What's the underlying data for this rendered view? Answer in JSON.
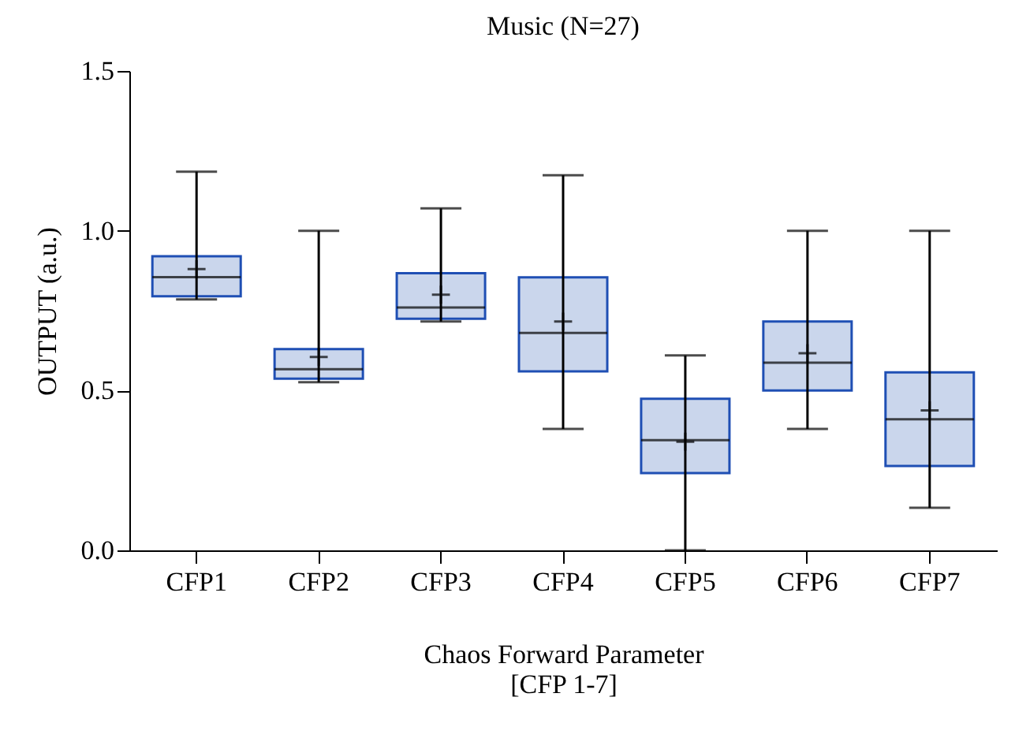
{
  "chart_data": {
    "type": "box",
    "title": "Music (N=27)",
    "xlabel": "Chaos Forward Parameter\n[CFP 1-7]",
    "ylabel": "OUTPUT (a.u.)",
    "categories": [
      "CFP1",
      "CFP2",
      "CFP3",
      "CFP4",
      "CFP5",
      "CFP6",
      "CFP7"
    ],
    "series": [
      {
        "color": "#cad6ec",
        "boxes": [
          {
            "low": 0.785,
            "q1": 0.795,
            "median": 0.855,
            "q3": 0.92,
            "high": 1.185,
            "mean": 0.88
          },
          {
            "low": 0.526,
            "q1": 0.537,
            "median": 0.567,
            "q3": 0.63,
            "high": 1.0,
            "mean": 0.605
          },
          {
            "low": 0.716,
            "q1": 0.725,
            "median": 0.76,
            "q3": 0.867,
            "high": 1.07,
            "mean": 0.8
          },
          {
            "low": 0.38,
            "q1": 0.56,
            "median": 0.68,
            "q3": 0.854,
            "high": 1.174,
            "mean": 0.716
          },
          {
            "low": 0.0,
            "q1": 0.242,
            "median": 0.345,
            "q3": 0.474,
            "high": 0.61,
            "mean": 0.34
          },
          {
            "low": 0.38,
            "q1": 0.5,
            "median": 0.587,
            "q3": 0.716,
            "high": 1.0,
            "mean": 0.617
          },
          {
            "low": 0.133,
            "q1": 0.264,
            "median": 0.41,
            "q3": 0.557,
            "high": 1.0,
            "mean": 0.438
          }
        ]
      }
    ],
    "ylim": [
      0,
      1.5
    ],
    "yticks": [
      {
        "value": 0,
        "label": "0.0"
      },
      {
        "value": 0.5,
        "label": "0.5"
      },
      {
        "value": 1.0,
        "label": "1.0"
      },
      {
        "value": 1.5,
        "label": "1.5"
      }
    ],
    "grid": false
  }
}
